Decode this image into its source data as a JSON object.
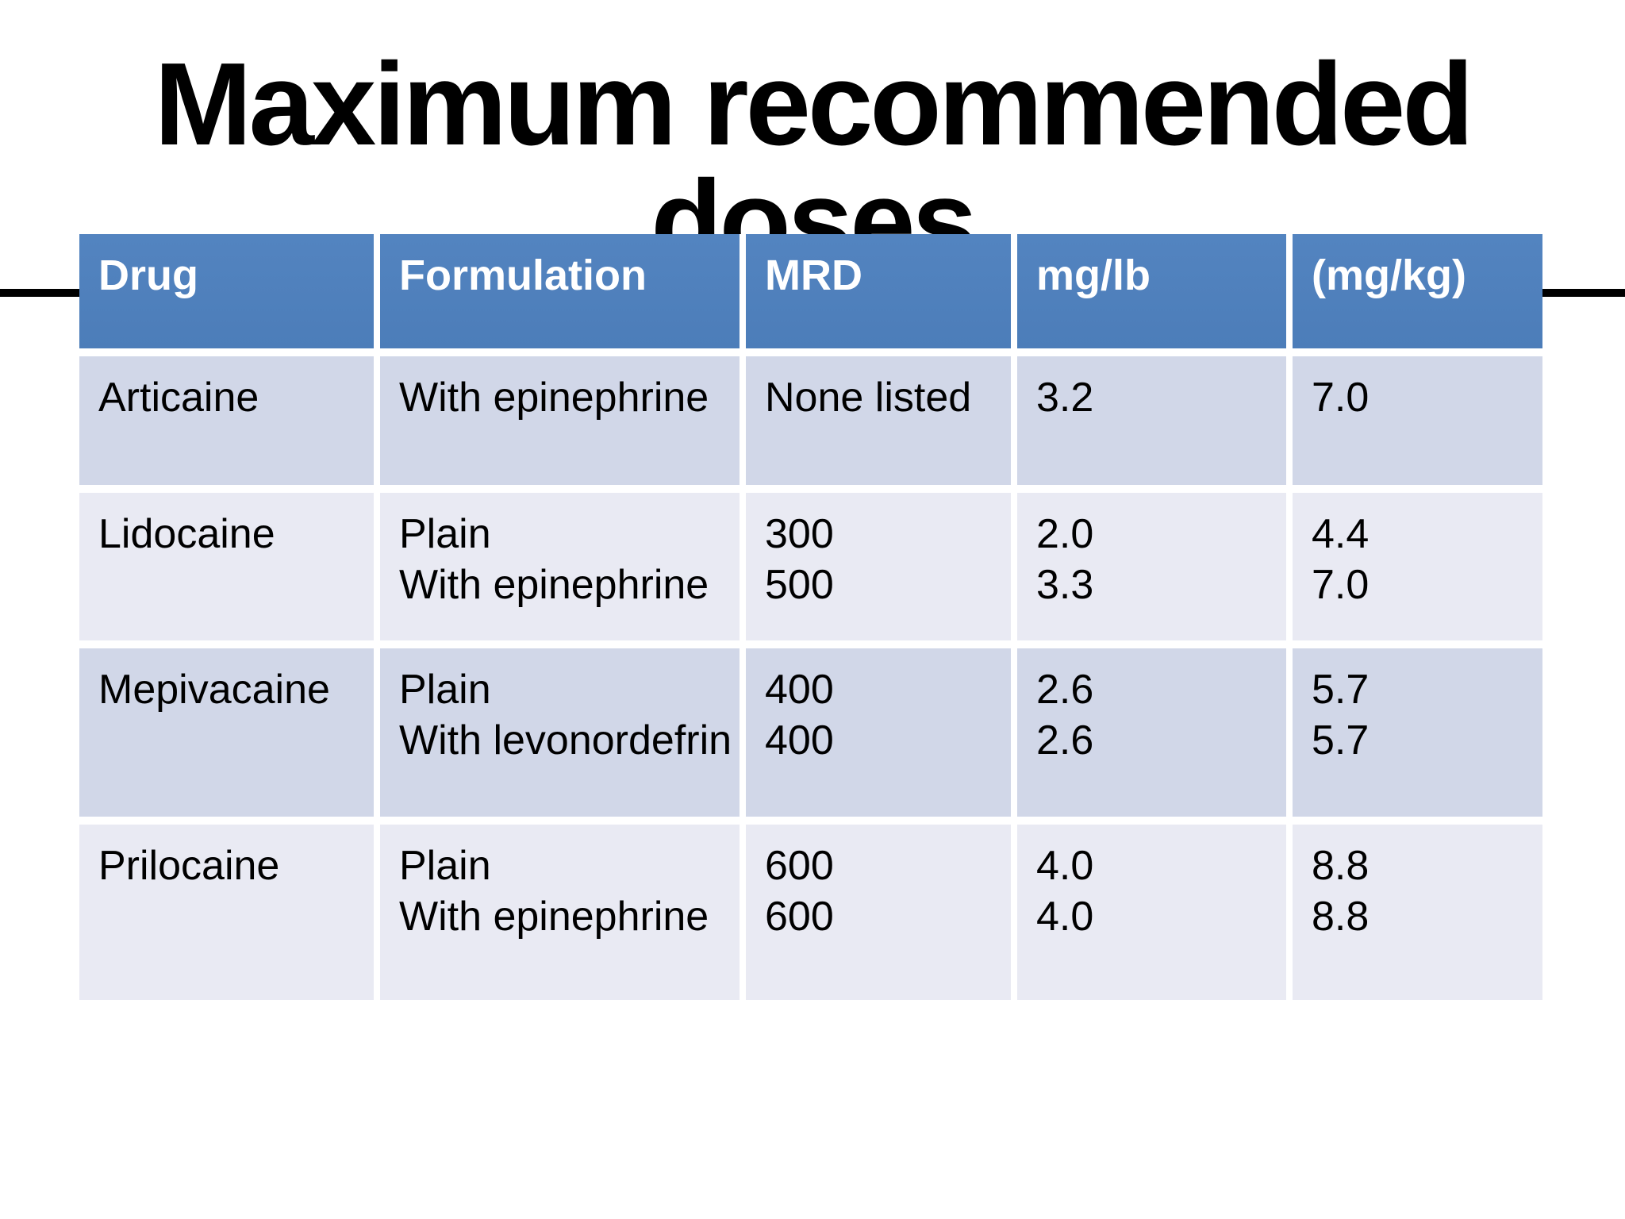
{
  "slide": {
    "title": "Maximum recommended doses"
  },
  "table": {
    "headers": {
      "drug": "Drug",
      "formulation": "Formulation",
      "mrd": "MRD",
      "mg_lb": "mg/lb",
      "mg_kg": "(mg/kg)"
    },
    "rows": [
      {
        "drug": "Articaine",
        "formulation": [
          "With epinephrine"
        ],
        "mrd": [
          "None listed"
        ],
        "mg_lb": [
          "3.2"
        ],
        "mg_kg": [
          "7.0"
        ]
      },
      {
        "drug": "Lidocaine",
        "formulation": [
          "Plain",
          "With epinephrine"
        ],
        "mrd": [
          "300",
          "500"
        ],
        "mg_lb": [
          "2.0",
          "3.3"
        ],
        "mg_kg": [
          "4.4",
          "7.0"
        ]
      },
      {
        "drug": "Mepivacaine",
        "formulation": [
          "Plain",
          "With levonordefrin"
        ],
        "mrd": [
          "400",
          "400"
        ],
        "mg_lb": [
          "2.6",
          "2.6"
        ],
        "mg_kg": [
          "5.7",
          "5.7"
        ]
      },
      {
        "drug": "Prilocaine",
        "formulation": [
          "Plain",
          "With epinephrine"
        ],
        "mrd": [
          "600",
          "600"
        ],
        "mg_lb": [
          "4.0",
          "4.0"
        ],
        "mg_kg": [
          "8.8",
          "8.8"
        ]
      }
    ],
    "colors": {
      "header_bg": "#4f81bd",
      "header_text": "#ffffff",
      "band_dark": "#d1d7e8",
      "band_light": "#e9eaf3",
      "separator": "#ffffff",
      "body_text": "#000000",
      "title_text": "#000000"
    }
  }
}
